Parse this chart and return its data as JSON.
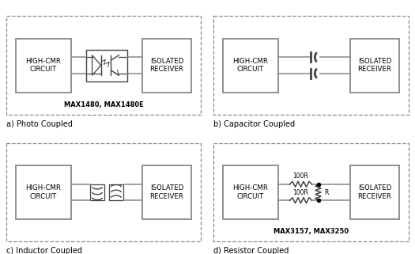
{
  "background_color": "#ffffff",
  "gray": "#888888",
  "dgray": "#444444",
  "black": "#000000",
  "label_a": "a) Photo Coupled",
  "label_b": "b) Capacitor Coupled",
  "label_c": "c) Inductor Coupled",
  "label_d": "d) Resistor Coupled",
  "model_a": "MAX1480, MAX1480E",
  "model_d": "MAX3157, MAX3250",
  "text_cmr": "HIGH-CMR\nCIRCUIT",
  "text_iso": "ISOLATED\nRECEIVER"
}
